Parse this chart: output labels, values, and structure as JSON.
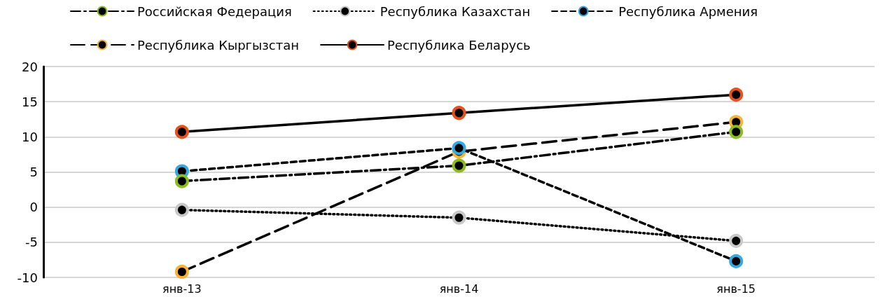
{
  "chart_data": {
    "type": "line",
    "categories": [
      "янв-13",
      "янв-14",
      "янв-15"
    ],
    "series": [
      {
        "name": "Российская Федерация",
        "color": "#8cbd1f",
        "values": [
          3.7,
          5.9,
          10.7
        ],
        "line_style": "dashdot"
      },
      {
        "name": "Республика Казахстан",
        "color": "#c8c8c8",
        "values": [
          -0.4,
          -1.5,
          -4.8
        ],
        "line_style": "dotted"
      },
      {
        "name": "Республика Армения",
        "color": "#36a9e1",
        "values": [
          5.1,
          8.4,
          -7.7
        ],
        "line_style": "dashed"
      },
      {
        "name": "Республика Кыргызстан",
        "color": "#f7b334",
        "values": [
          -9.2,
          7.9,
          12.1
        ],
        "line_style": "longdash"
      },
      {
        "name": "Республика Беларусь",
        "color": "#e6511e",
        "values": [
          10.7,
          13.4,
          16.0
        ],
        "line_style": "solid"
      }
    ],
    "ylim": [
      -10,
      20
    ],
    "yticks": [
      -10,
      -5,
      0,
      5,
      10,
      15,
      20
    ],
    "grid": "y",
    "legend": "top",
    "marker": "circle"
  }
}
